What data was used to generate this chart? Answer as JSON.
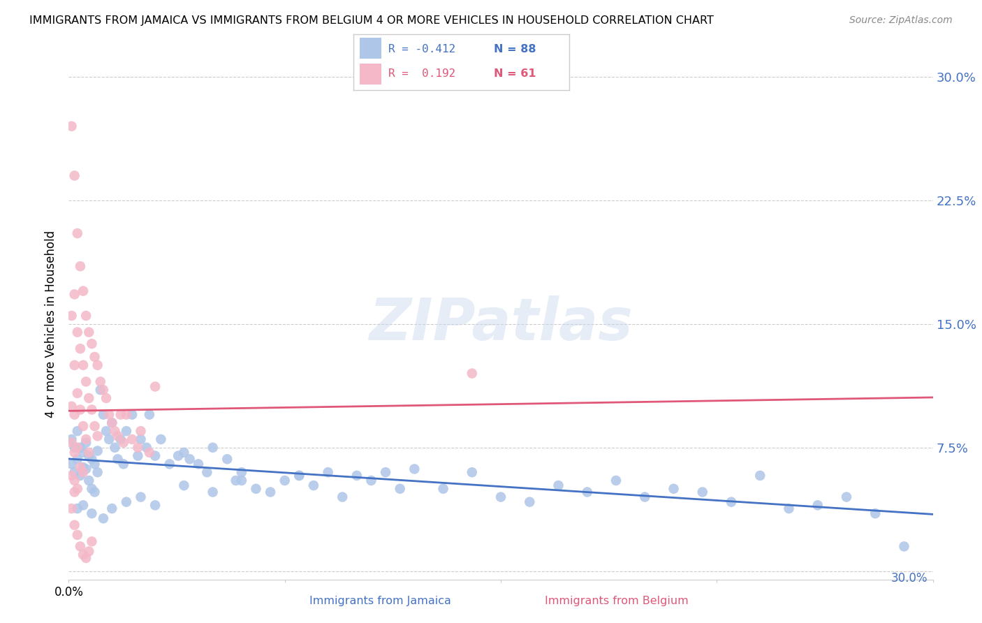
{
  "title": "IMMIGRANTS FROM JAMAICA VS IMMIGRANTS FROM BELGIUM 4 OR MORE VEHICLES IN HOUSEHOLD CORRELATION CHART",
  "source": "Source: ZipAtlas.com",
  "ylabel": "4 or more Vehicles in Household",
  "xmin": 0.0,
  "xmax": 0.3,
  "ymin": -0.005,
  "ymax": 0.305,
  "yticks": [
    0.0,
    0.075,
    0.15,
    0.225,
    0.3
  ],
  "ytick_labels": [
    "",
    "7.5%",
    "15.0%",
    "22.5%",
    "30.0%"
  ],
  "jamaica_color": "#aec6e8",
  "jamaica_line_color": "#4472c4",
  "belgium_color": "#f4b8c8",
  "belgium_line_color": "#e05878",
  "legend_jamaica_label": "Immigrants from Jamaica",
  "legend_belgium_label": "Immigrants from Belgium",
  "watermark": "ZIPatlas",
  "jamaica_R": -0.412,
  "jamaica_N": 88,
  "belgium_R": 0.192,
  "belgium_N": 61,
  "jamaica_points_x": [
    0.001,
    0.001,
    0.002,
    0.002,
    0.003,
    0.003,
    0.004,
    0.004,
    0.005,
    0.005,
    0.006,
    0.006,
    0.007,
    0.007,
    0.008,
    0.008,
    0.009,
    0.009,
    0.01,
    0.01,
    0.011,
    0.012,
    0.013,
    0.014,
    0.015,
    0.016,
    0.017,
    0.018,
    0.019,
    0.02,
    0.022,
    0.024,
    0.025,
    0.027,
    0.028,
    0.03,
    0.032,
    0.035,
    0.038,
    0.04,
    0.042,
    0.045,
    0.048,
    0.05,
    0.055,
    0.058,
    0.06,
    0.065,
    0.07,
    0.075,
    0.08,
    0.085,
    0.09,
    0.095,
    0.1,
    0.105,
    0.11,
    0.115,
    0.12,
    0.13,
    0.14,
    0.15,
    0.16,
    0.17,
    0.18,
    0.19,
    0.2,
    0.21,
    0.22,
    0.23,
    0.24,
    0.25,
    0.26,
    0.27,
    0.28,
    0.29,
    0.003,
    0.005,
    0.008,
    0.012,
    0.015,
    0.02,
    0.025,
    0.03,
    0.04,
    0.05,
    0.06,
    0.08
  ],
  "jamaica_points_y": [
    0.08,
    0.065,
    0.075,
    0.06,
    0.085,
    0.068,
    0.075,
    0.058,
    0.072,
    0.063,
    0.078,
    0.062,
    0.07,
    0.055,
    0.068,
    0.05,
    0.065,
    0.048,
    0.073,
    0.06,
    0.11,
    0.095,
    0.085,
    0.08,
    0.09,
    0.075,
    0.068,
    0.08,
    0.065,
    0.085,
    0.095,
    0.07,
    0.08,
    0.075,
    0.095,
    0.07,
    0.08,
    0.065,
    0.07,
    0.072,
    0.068,
    0.065,
    0.06,
    0.075,
    0.068,
    0.055,
    0.06,
    0.05,
    0.048,
    0.055,
    0.058,
    0.052,
    0.06,
    0.045,
    0.058,
    0.055,
    0.06,
    0.05,
    0.062,
    0.05,
    0.06,
    0.045,
    0.042,
    0.052,
    0.048,
    0.055,
    0.045,
    0.05,
    0.048,
    0.042,
    0.058,
    0.038,
    0.04,
    0.045,
    0.035,
    0.015,
    0.038,
    0.04,
    0.035,
    0.032,
    0.038,
    0.042,
    0.045,
    0.04,
    0.052,
    0.048,
    0.055,
    0.058
  ],
  "belgium_points_x": [
    0.001,
    0.001,
    0.001,
    0.001,
    0.001,
    0.002,
    0.002,
    0.002,
    0.002,
    0.002,
    0.002,
    0.003,
    0.003,
    0.003,
    0.003,
    0.004,
    0.004,
    0.004,
    0.004,
    0.005,
    0.005,
    0.005,
    0.005,
    0.006,
    0.006,
    0.006,
    0.007,
    0.007,
    0.007,
    0.008,
    0.008,
    0.009,
    0.009,
    0.01,
    0.01,
    0.011,
    0.012,
    0.013,
    0.014,
    0.015,
    0.016,
    0.017,
    0.018,
    0.019,
    0.02,
    0.022,
    0.024,
    0.025,
    0.028,
    0.03,
    0.001,
    0.002,
    0.003,
    0.004,
    0.005,
    0.006,
    0.007,
    0.008,
    0.14,
    0.002,
    0.003
  ],
  "belgium_points_y": [
    0.27,
    0.155,
    0.1,
    0.078,
    0.058,
    0.24,
    0.168,
    0.125,
    0.095,
    0.072,
    0.055,
    0.205,
    0.145,
    0.108,
    0.075,
    0.185,
    0.135,
    0.098,
    0.063,
    0.17,
    0.125,
    0.088,
    0.06,
    0.155,
    0.115,
    0.08,
    0.145,
    0.105,
    0.072,
    0.138,
    0.098,
    0.13,
    0.088,
    0.125,
    0.082,
    0.115,
    0.11,
    0.105,
    0.095,
    0.09,
    0.085,
    0.082,
    0.095,
    0.078,
    0.095,
    0.08,
    0.075,
    0.085,
    0.072,
    0.112,
    0.038,
    0.028,
    0.022,
    0.015,
    0.01,
    0.008,
    0.012,
    0.018,
    0.12,
    0.048,
    0.05
  ]
}
